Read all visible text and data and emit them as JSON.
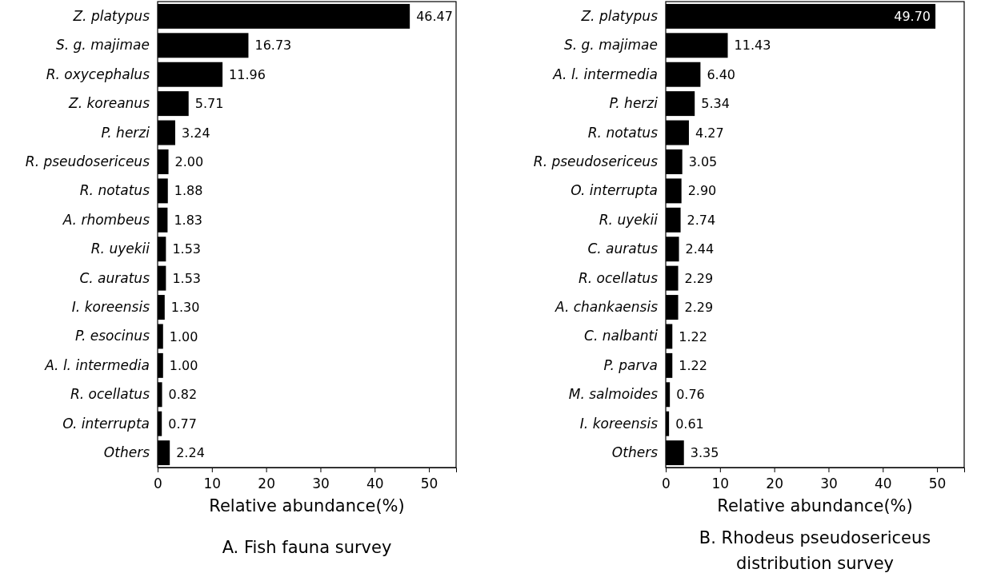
{
  "chart_data": [
    {
      "type": "bar",
      "orientation": "horizontal",
      "title": "A. Fish fauna survey",
      "xlabel": "Relative abundance(%)",
      "categories": [
        "Z. platypus",
        "S. g. majimae",
        "R. oxycephalus",
        "Z. koreanus",
        "P. herzi",
        "R. pseudosericeus",
        "R. notatus",
        "A. rhombeus",
        "R. uyekii",
        "C. auratus",
        "I. koreensis",
        "P. esocinus",
        "A. l. intermedia",
        "R. ocellatus",
        "O. interrupta",
        "Others"
      ],
      "values": [
        46.47,
        16.73,
        11.96,
        5.71,
        3.24,
        2.0,
        1.88,
        1.83,
        1.53,
        1.53,
        1.3,
        1.0,
        1.0,
        0.82,
        0.77,
        2.24
      ],
      "value_labels": [
        "46.47",
        "16.73",
        "11.96",
        "5.71",
        "3.24",
        "2.00",
        "1.88",
        "1.83",
        "1.53",
        "1.53",
        "1.30",
        "1.00",
        "1.00",
        "0.82",
        "0.77",
        "2.24"
      ],
      "color": "#000000",
      "xlim": [
        0,
        55
      ],
      "xticks": [
        0,
        10,
        20,
        30,
        40,
        50
      ],
      "grid": false
    },
    {
      "type": "bar",
      "orientation": "horizontal",
      "title": "B. Rhodeus pseudosericeus distribution survey",
      "xlabel": "Relative abundance(%)",
      "categories": [
        "Z. platypus",
        "S. g. majimae",
        "A. l. intermedia",
        "P. herzi",
        "R. notatus",
        "R. pseudosericeus",
        "O. interrupta",
        "R. uyekii",
        "C. auratus",
        "R. ocellatus",
        "A. chankaensis",
        "C. nalbanti",
        "P. parva",
        "M. salmoides",
        "I. koreensis",
        "Others"
      ],
      "values": [
        49.7,
        11.43,
        6.4,
        5.34,
        4.27,
        3.05,
        2.9,
        2.74,
        2.44,
        2.29,
        2.29,
        1.22,
        1.22,
        0.76,
        0.61,
        3.35
      ],
      "value_labels": [
        "49.70",
        "11.43",
        "6.40",
        "5.34",
        "4.27",
        "3.05",
        "2.90",
        "2.74",
        "2.44",
        "2.29",
        "2.29",
        "1.22",
        "1.22",
        "0.76",
        "0.61",
        "3.35"
      ],
      "color": "#000000",
      "xlim": [
        0,
        55
      ],
      "xticks": [
        0,
        10,
        20,
        30,
        40,
        50
      ],
      "grid": false
    }
  ]
}
